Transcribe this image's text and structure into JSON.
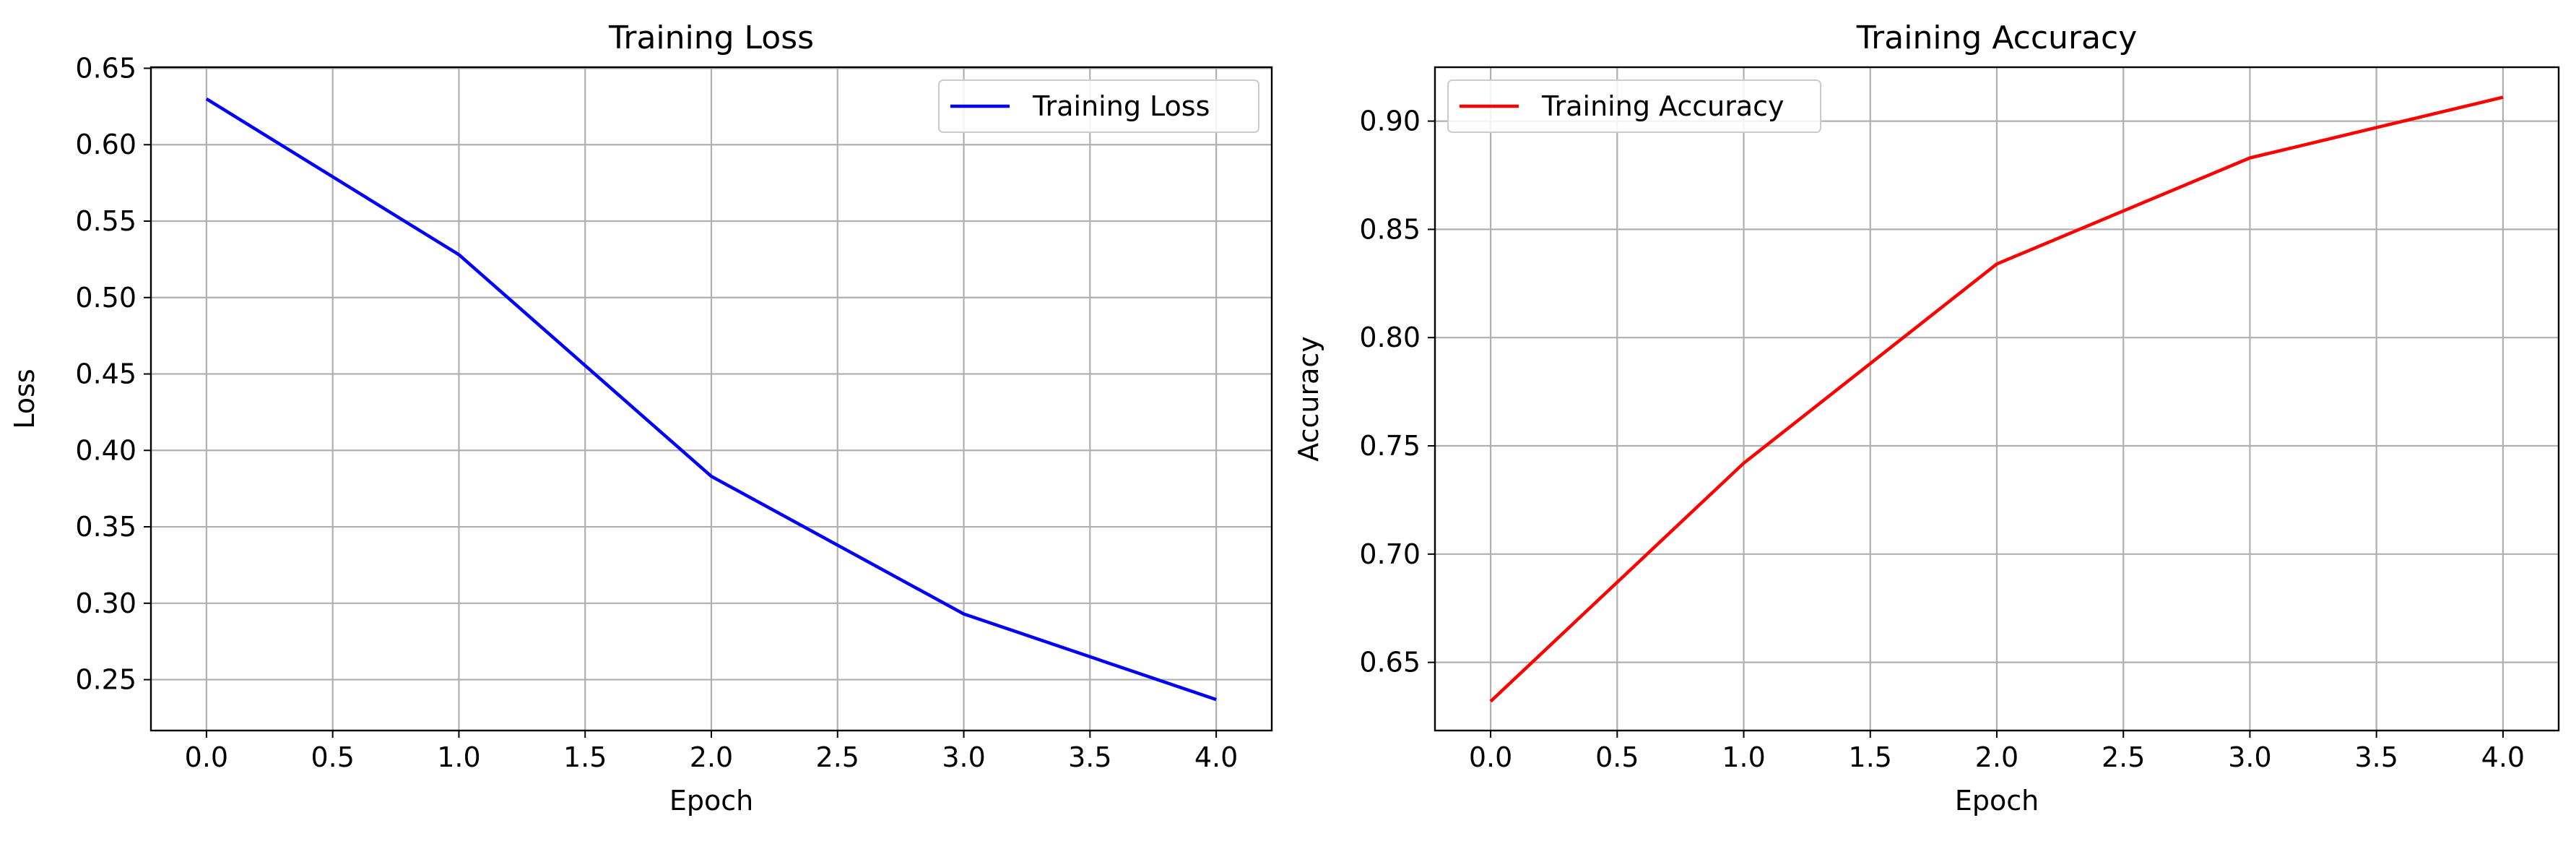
{
  "chart_data": [
    {
      "type": "line",
      "title": "Training Loss",
      "xlabel": "Epoch",
      "ylabel": "Loss",
      "x": [
        0,
        1,
        2,
        3,
        4
      ],
      "series": [
        {
          "name": "Training Loss",
          "values": [
            0.63,
            0.528,
            0.383,
            0.293,
            0.237
          ],
          "color": "#0000ff"
        }
      ],
      "xlim": [
        -0.22,
        4.22
      ],
      "ylim": [
        0.2167,
        0.6507
      ],
      "xticks": [
        0.0,
        0.5,
        1.0,
        1.5,
        2.0,
        2.5,
        3.0,
        3.5,
        4.0
      ],
      "xtick_labels": [
        "0.0",
        "0.5",
        "1.0",
        "1.5",
        "2.0",
        "2.5",
        "3.0",
        "3.5",
        "4.0"
      ],
      "yticks": [
        0.25,
        0.3,
        0.35,
        0.4,
        0.45,
        0.5,
        0.55,
        0.6,
        0.65
      ],
      "ytick_labels": [
        "0.25",
        "0.30",
        "0.35",
        "0.40",
        "0.45",
        "0.50",
        "0.55",
        "0.60",
        "0.65"
      ],
      "grid": true,
      "legend_position": "top-right"
    },
    {
      "type": "line",
      "title": "Training Accuracy",
      "xlabel": "Epoch",
      "ylabel": "Accuracy",
      "x": [
        0,
        1,
        2,
        3,
        4
      ],
      "series": [
        {
          "name": "Training Accuracy",
          "values": [
            0.632,
            0.742,
            0.834,
            0.883,
            0.911
          ],
          "color": "#ff0000"
        }
      ],
      "xlim": [
        -0.22,
        4.22
      ],
      "ylim": [
        0.6185,
        0.9249
      ],
      "xticks": [
        0.0,
        0.5,
        1.0,
        1.5,
        2.0,
        2.5,
        3.0,
        3.5,
        4.0
      ],
      "xtick_labels": [
        "0.0",
        "0.5",
        "1.0",
        "1.5",
        "2.0",
        "2.5",
        "3.0",
        "3.5",
        "4.0"
      ],
      "yticks": [
        0.65,
        0.7,
        0.75,
        0.8,
        0.85,
        0.9
      ],
      "ytick_labels": [
        "0.65",
        "0.70",
        "0.75",
        "0.80",
        "0.85",
        "0.90"
      ],
      "grid": true,
      "legend_position": "top-left"
    }
  ],
  "colors": {
    "grid": "#b0b0b0",
    "axes": "#000000",
    "legend_border": "#cccccc"
  }
}
